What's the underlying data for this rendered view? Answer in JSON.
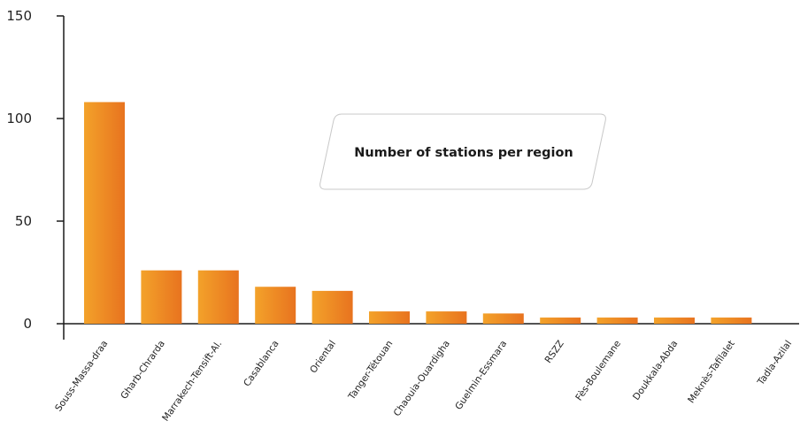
{
  "chart_data": {
    "type": "bar",
    "annotation": "Number of stations per region",
    "categories": [
      "Souss-Massa-draa",
      "Gharb-Chrarda",
      "Marrakech-Tensift-Al.",
      "Casablanca",
      "Oriental",
      "Tanger-Tétouan",
      "Chaouia-Ouardigha",
      "Guelmin-Essmara",
      "RSZZ",
      "Fès-Boulemane",
      "Doukkala-Abda",
      "Meknès-Tafilalet",
      "Tadla-Azilal"
    ],
    "values": [
      108,
      26,
      26,
      18,
      16,
      6,
      6,
      5,
      3,
      3,
      3,
      3,
      0
    ],
    "yticks": [
      "0",
      "50",
      "100",
      "150"
    ],
    "ylim": [
      0,
      150
    ],
    "grid": false,
    "legend": "none",
    "colors": {
      "bar_light": "#f3a22a",
      "bar_dark": "#e8731f",
      "axis": "#1a1a1a"
    }
  }
}
